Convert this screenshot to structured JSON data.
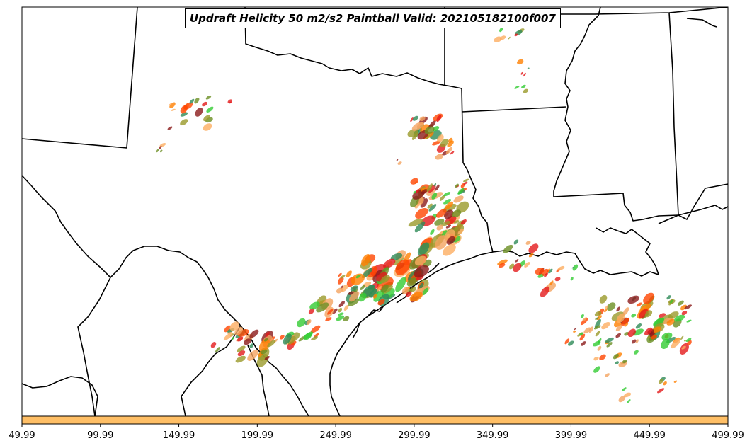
{
  "title": "Updraft Helicity 50 m2/s2 Paintball Valid: 202105182100f007",
  "colorbar": {
    "color": "#ffbf66",
    "ticks": [
      "49.99",
      "99.99",
      "149.99",
      "199.99",
      "249.99",
      "299.99",
      "349.99",
      "399.99",
      "449.99",
      "499.99"
    ],
    "range": [
      49.99,
      499.99
    ]
  },
  "colors": {
    "member_palette": [
      "#e31a1c",
      "#ff7f00",
      "#fdae61",
      "#33cc33",
      "#2e8b57",
      "#8b1a1a",
      "#9a9a2a",
      "#f4a460",
      "#ff4500",
      "#6b8e23"
    ],
    "boundary": "#000000",
    "background": "#ffffff"
  },
  "map": {
    "region": "South-Central United States (Texas, Louisiana, Arkansas, Mississippi, Oklahoma, Mexico border)",
    "features": [
      "state-borders",
      "coastline",
      "international-border"
    ]
  }
}
